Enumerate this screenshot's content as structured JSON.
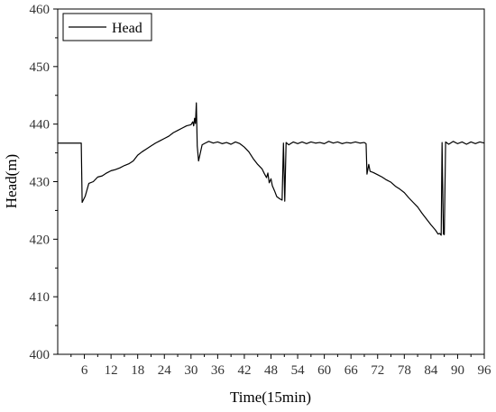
{
  "chart_data": {
    "type": "line",
    "xlabel": "Time(15min)",
    "ylabel": "Head(m)",
    "xlim": [
      0,
      96
    ],
    "ylim": [
      400,
      460
    ],
    "xticks": [
      6,
      12,
      18,
      24,
      30,
      36,
      42,
      48,
      54,
      60,
      66,
      72,
      78,
      84,
      90,
      96
    ],
    "yticks": [
      400,
      410,
      420,
      430,
      440,
      450,
      460
    ],
    "grid": false,
    "legend": "top-left",
    "series": [
      {
        "name": "Head",
        "color": "#000000",
        "points": [
          [
            0,
            436.7
          ],
          [
            5.3,
            436.7
          ],
          [
            5.5,
            426.4
          ],
          [
            6.2,
            427.5
          ],
          [
            7,
            429.7
          ],
          [
            8,
            430.0
          ],
          [
            9,
            430.8
          ],
          [
            10,
            431.0
          ],
          [
            11,
            431.5
          ],
          [
            12,
            431.9
          ],
          [
            13,
            432.1
          ],
          [
            14,
            432.4
          ],
          [
            15,
            432.8
          ],
          [
            16,
            433.1
          ],
          [
            17,
            433.6
          ],
          [
            18,
            434.6
          ],
          [
            19,
            435.2
          ],
          [
            20,
            435.7
          ],
          [
            21,
            436.2
          ],
          [
            22,
            436.7
          ],
          [
            23,
            437.1
          ],
          [
            24,
            437.5
          ],
          [
            25,
            437.9
          ],
          [
            26,
            438.5
          ],
          [
            27,
            438.9
          ],
          [
            28,
            439.3
          ],
          [
            29,
            439.7
          ],
          [
            30,
            439.9
          ],
          [
            30.4,
            440.4
          ],
          [
            30.6,
            439.7
          ],
          [
            30.8,
            441.0
          ],
          [
            31.0,
            440.1
          ],
          [
            31.2,
            443.7
          ],
          [
            31.4,
            436.2
          ],
          [
            31.7,
            433.6
          ],
          [
            32.5,
            436.4
          ],
          [
            33.2,
            436.7
          ],
          [
            34,
            437.0
          ],
          [
            35,
            436.7
          ],
          [
            36,
            436.9
          ],
          [
            37,
            436.6
          ],
          [
            38,
            436.8
          ],
          [
            39,
            436.5
          ],
          [
            40,
            436.9
          ],
          [
            41,
            436.6
          ],
          [
            42,
            436.0
          ],
          [
            43,
            435.2
          ],
          [
            44,
            434.0
          ],
          [
            45,
            433.0
          ],
          [
            46,
            432.2
          ],
          [
            46.5,
            431.4
          ],
          [
            47,
            430.7
          ],
          [
            47.3,
            431.5
          ],
          [
            47.6,
            429.8
          ],
          [
            48,
            430.5
          ],
          [
            48.3,
            429.3
          ],
          [
            48.8,
            428.4
          ],
          [
            49.3,
            427.4
          ],
          [
            50,
            427.0
          ],
          [
            50.5,
            426.8
          ],
          [
            50.8,
            436.7
          ],
          [
            51.1,
            426.6
          ],
          [
            51.4,
            436.8
          ],
          [
            52,
            436.4
          ],
          [
            53,
            436.9
          ],
          [
            54,
            436.6
          ],
          [
            55,
            436.9
          ],
          [
            56,
            436.6
          ],
          [
            57,
            436.9
          ],
          [
            58,
            436.7
          ],
          [
            59,
            436.8
          ],
          [
            60,
            436.6
          ],
          [
            61,
            437.0
          ],
          [
            62,
            436.7
          ],
          [
            63,
            436.9
          ],
          [
            64,
            436.6
          ],
          [
            65,
            436.8
          ],
          [
            66,
            436.7
          ],
          [
            67,
            436.9
          ],
          [
            68,
            436.7
          ],
          [
            69,
            436.8
          ],
          [
            69.4,
            436.6
          ],
          [
            69.6,
            431.3
          ],
          [
            70,
            433.0
          ],
          [
            70.3,
            431.8
          ],
          [
            71,
            431.6
          ],
          [
            72,
            431.2
          ],
          [
            73,
            430.8
          ],
          [
            74,
            430.3
          ],
          [
            75,
            429.9
          ],
          [
            76,
            429.2
          ],
          [
            77,
            428.7
          ],
          [
            78,
            428.1
          ],
          [
            79,
            427.2
          ],
          [
            80,
            426.4
          ],
          [
            81,
            425.6
          ],
          [
            82,
            424.5
          ],
          [
            83,
            423.5
          ],
          [
            84,
            422.5
          ],
          [
            85,
            421.6
          ],
          [
            85.6,
            420.9
          ],
          [
            86,
            421.0
          ],
          [
            86.3,
            420.7
          ],
          [
            86.5,
            436.8
          ],
          [
            86.8,
            420.9
          ],
          [
            87,
            420.8
          ],
          [
            87.3,
            436.9
          ],
          [
            88,
            436.5
          ],
          [
            89,
            437.0
          ],
          [
            90,
            436.6
          ],
          [
            91,
            436.9
          ],
          [
            92,
            436.5
          ],
          [
            93,
            436.9
          ],
          [
            94,
            436.6
          ],
          [
            95,
            436.9
          ],
          [
            96,
            436.7
          ]
        ]
      }
    ]
  }
}
